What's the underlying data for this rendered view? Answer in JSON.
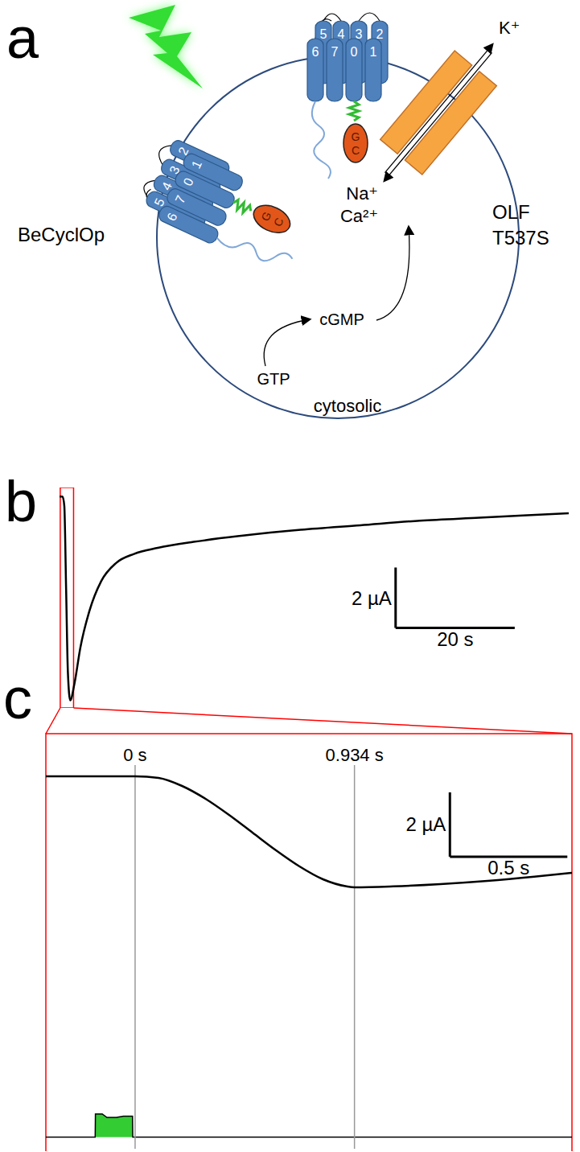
{
  "diagram": {
    "letter": "a",
    "rhodopsin": {
      "label": "BeCyclOp",
      "helices": [
        "0",
        "1",
        "2",
        "3",
        "4",
        "5",
        "6",
        "7"
      ],
      "domain": [
        "G",
        "C"
      ]
    },
    "channel": {
      "label": "OLF",
      "mutation": "T537S",
      "out": [
        "K⁺"
      ],
      "in": [
        "Na⁺",
        "Ca²⁺"
      ]
    },
    "substrate": "GTP",
    "product": "cGMP",
    "compartment": "cytosolic"
  },
  "chart_data": [
    {
      "type": "line",
      "letter": "b",
      "x": [
        -0.5,
        0,
        0.3,
        0.6,
        0.9,
        1.3,
        2.0,
        3.0,
        4.5,
        6.5,
        9,
        12,
        16,
        22,
        30,
        40,
        50,
        60,
        70,
        85
      ],
      "values": [
        0,
        0,
        -0.3,
        -3.0,
        -5.8,
        -6.75,
        -6.2,
        -5.0,
        -3.8,
        -2.8,
        -2.2,
        -1.9,
        -1.7,
        -1.5,
        -1.3,
        -1.1,
        -0.95,
        -0.8,
        -0.7,
        -0.55
      ],
      "color": "#000000",
      "xlim": [
        -0.5,
        85
      ],
      "ylim": [
        -7,
        0.3
      ],
      "tick_labels": false,
      "scale_bars": {
        "x": {
          "value": 20,
          "label": "20 s"
        },
        "y": {
          "value": 2,
          "label": "2 µA"
        }
      },
      "zoom": [
        -0.38,
        1.86
      ]
    },
    {
      "type": "line",
      "letter": "c",
      "x": [
        -0.38,
        0,
        0.1,
        0.2,
        0.3,
        0.4,
        0.5,
        0.6,
        0.7,
        0.8,
        0.9,
        0.934,
        1.1,
        1.3,
        1.5,
        1.7,
        1.86
      ],
      "values": [
        0,
        0,
        -0.05,
        -0.3,
        -0.7,
        -1.2,
        -1.75,
        -2.3,
        -2.8,
        -3.2,
        -3.42,
        -3.45,
        -3.42,
        -3.35,
        -3.25,
        -3.12,
        -3.0
      ],
      "color": "#000000",
      "xlim": [
        -0.38,
        1.86
      ],
      "ylim": [
        -4,
        0.35
      ],
      "tick_labels": false,
      "markers": [
        {
          "value": 0,
          "label": "0 s"
        },
        {
          "value": 0.934,
          "label": "0.934 s"
        }
      ],
      "scale_bars": {
        "x": {
          "value": 0.5,
          "label": "0.5 s"
        },
        "y": {
          "value": 2,
          "label": "2 µA"
        }
      },
      "light": {
        "x": [
          -0.38,
          -0.17,
          -0.169,
          -0.14,
          -0.12,
          -0.08,
          -0.05,
          -0.011,
          -0.01,
          1.86
        ],
        "values": [
          0,
          0,
          1,
          1,
          0.85,
          0.85,
          0.9,
          0.9,
          0,
          0
        ],
        "ylim": [
          -0.5,
          10
        ],
        "color": "#33cc33"
      }
    }
  ]
}
